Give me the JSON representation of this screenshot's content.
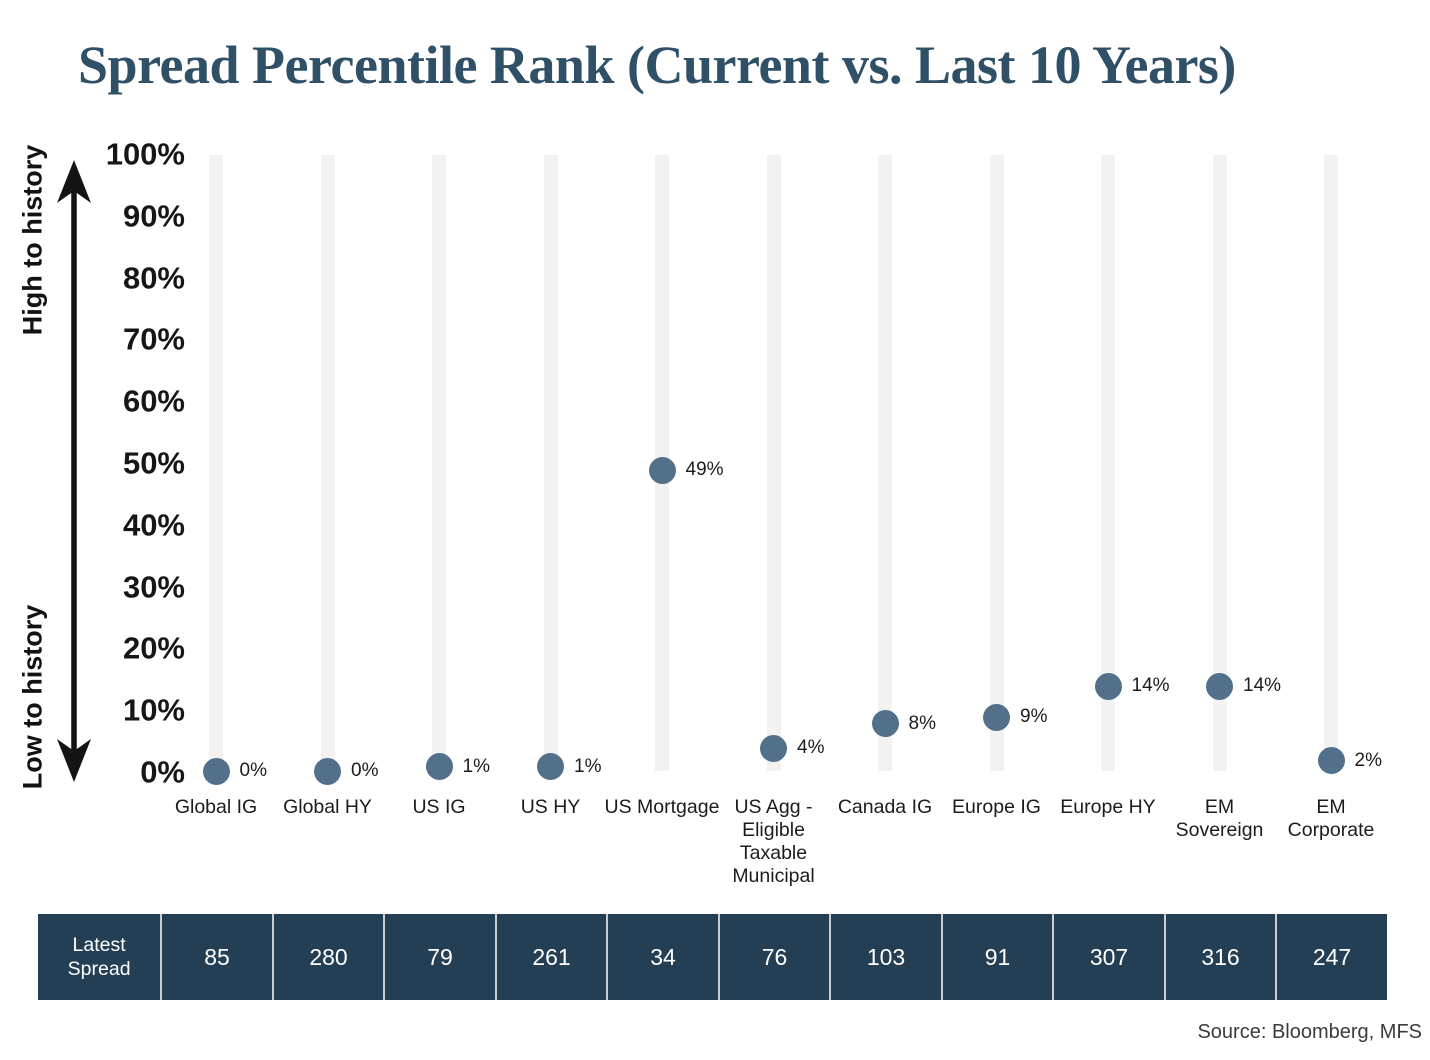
{
  "title": "Spread Percentile Rank (Current vs. Last 10 Years)",
  "y_axis": {
    "high_label": "High to history",
    "low_label": "Low to history",
    "tick_labels": [
      "100%",
      "90%",
      "80%",
      "70%",
      "60%",
      "50%",
      "40%",
      "30%",
      "20%",
      "10%",
      "0%"
    ]
  },
  "chart_data": {
    "type": "scatter",
    "title": "Spread Percentile Rank (Current vs. Last 10 Years)",
    "categories": [
      "Global IG",
      "Global HY",
      "US IG",
      "US HY",
      "US Mortgage",
      "US Agg - Eligible Taxable Municipal",
      "Canada IG",
      "Europe IG",
      "Europe HY",
      "EM Sovereign",
      "EM Corporate"
    ],
    "values": [
      0,
      0,
      1,
      1,
      49,
      4,
      8,
      9,
      14,
      14,
      2
    ],
    "point_labels": [
      "0%",
      "0%",
      "1%",
      "1%",
      "49%",
      "4%",
      "8%",
      "9%",
      "14%",
      "14%",
      "2%"
    ],
    "label_lines": [
      [
        "Global IG"
      ],
      [
        "Global HY"
      ],
      [
        "US IG"
      ],
      [
        "US HY"
      ],
      [
        "US Mortgage"
      ],
      [
        "US Agg -",
        "Eligible",
        "Taxable",
        "Municipal"
      ],
      [
        "Canada IG"
      ],
      [
        "Europe IG"
      ],
      [
        "Europe HY"
      ],
      [
        "EM",
        "Sovereign"
      ],
      [
        "EM",
        "Corporate"
      ]
    ],
    "ylim": [
      0,
      100
    ],
    "y_tick_step": 10,
    "grid": "off",
    "legend": "none",
    "dot_color": "#52708A",
    "track_color": "#F2F2F2"
  },
  "table": {
    "header_lines": [
      "Latest",
      "Spread"
    ],
    "values": [
      "85",
      "280",
      "79",
      "261",
      "34",
      "76",
      "103",
      "91",
      "307",
      "316",
      "247"
    ],
    "bg_color": "#243F54",
    "text_color": "#FFFFFF"
  },
  "source": "Source: Bloomberg, MFS",
  "colors": {
    "title": "#2F5066",
    "dot": "#52708A",
    "track": "#F2F2F2",
    "table_bg": "#243F54"
  }
}
